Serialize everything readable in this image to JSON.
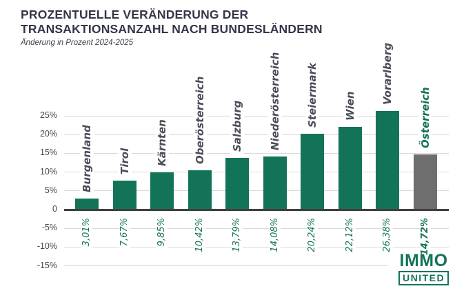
{
  "chart_data": {
    "type": "bar",
    "title": "PROZENTUELLE VERÄNDERUNG DER TRANSAKTIONSANZAHL NACH BUNDESLÄNDERN",
    "title_line1": "PROZENTUELLE VERÄNDERUNG DER",
    "title_line2": "TRANSAKTIONSANZAHL NACH BUNDESLÄNDERN",
    "subtitle": "Änderung in Prozent 2024-2025",
    "xlabel": "",
    "ylabel": "",
    "categories": [
      "Burgenland",
      "Tirol",
      "Kärnten",
      "Oberösterreich",
      "Salzburg",
      "Niederösterreich",
      "Steiermark",
      "Wien",
      "Vorarlberg",
      "Österreich"
    ],
    "values": [
      3.01,
      7.67,
      9.85,
      10.42,
      13.79,
      14.08,
      20.24,
      22.12,
      26.38,
      14.72
    ],
    "value_labels": [
      "3,01%",
      "7,67%",
      "9,85%",
      "10,42%",
      "13,79%",
      "14,08%",
      "20,24%",
      "22,12%",
      "26,38%",
      "14,72%"
    ],
    "highlight_index": 9,
    "y_ticks": [
      {
        "value": 25,
        "label": "25%"
      },
      {
        "value": 20,
        "label": "20%"
      },
      {
        "value": 15,
        "label": "15%"
      },
      {
        "value": 10,
        "label": "10%"
      },
      {
        "value": 5,
        "label": "5%"
      },
      {
        "value": 0,
        "label": "0"
      },
      {
        "value": -5,
        "label": "-5%"
      },
      {
        "value": -10,
        "label": "-10%"
      },
      {
        "value": -15,
        "label": "-15%"
      }
    ],
    "ylim": [
      -15,
      27.5
    ],
    "grid": true,
    "legend": false,
    "colors": {
      "bar": "#137358",
      "highlight_bar": "#6E6E6E",
      "value_text": "#137358",
      "category_text": "#4A4C57",
      "highlight_category_text": "#137358",
      "axis_text": "#45474F",
      "gridline": "#D9D9D9",
      "zero_line": "#3F3F3F",
      "title_text": "#343649"
    }
  },
  "logo": {
    "line1": "IMMO",
    "line2": "UNITED"
  }
}
